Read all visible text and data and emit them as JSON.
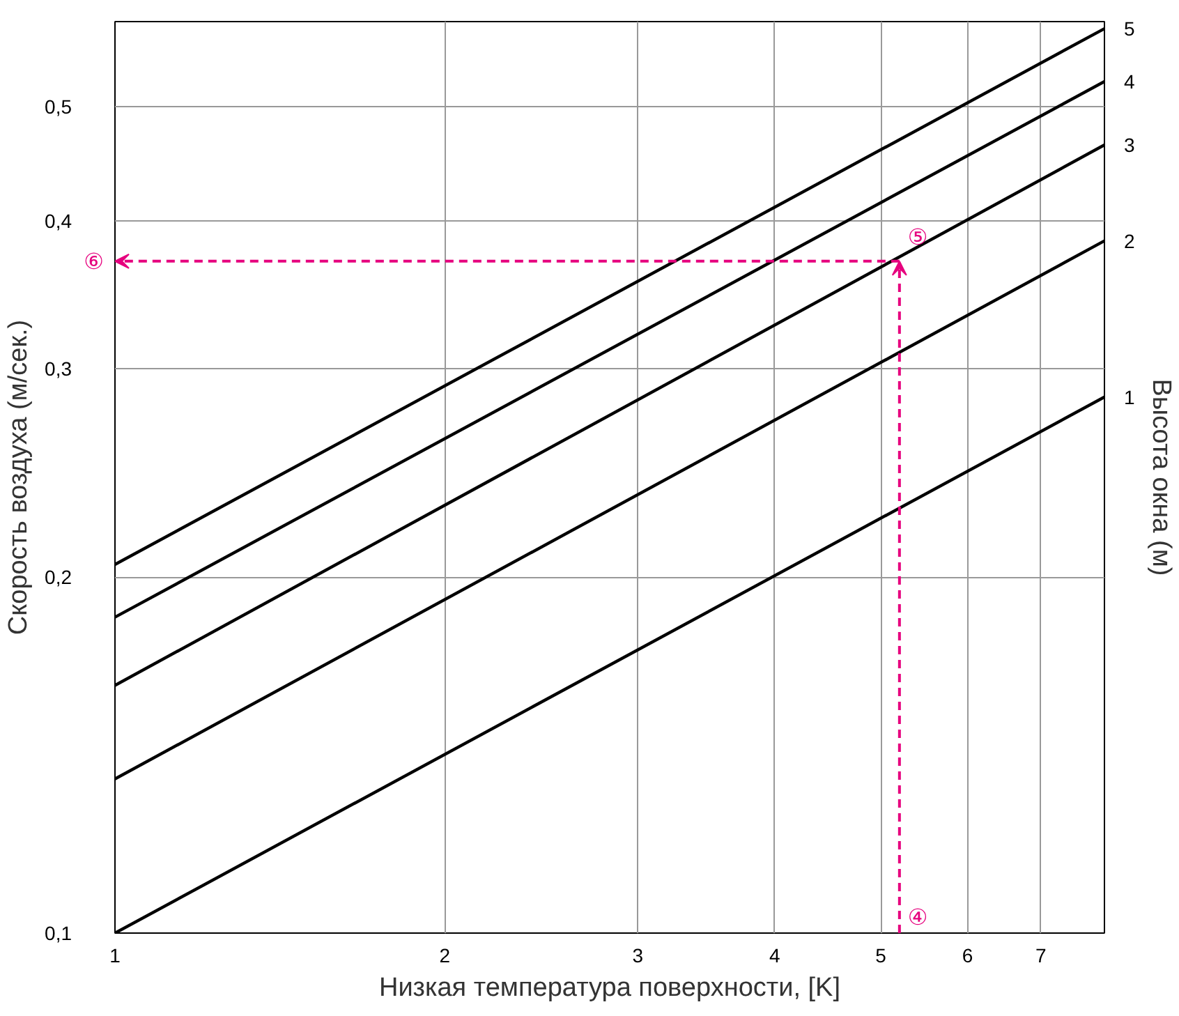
{
  "chart_data": {
    "type": "line",
    "xlabel": "Низкая температура поверхности, [K]",
    "ylabel": "Скорость воздуха (м/сек.)",
    "y2label": "Высота окна (м)",
    "log": "xy",
    "grid": true,
    "legend": false,
    "marker": "none",
    "xlim": [
      1,
      8
    ],
    "ylim": [
      0.1,
      0.59
    ],
    "xticks": [
      1,
      2,
      3,
      4,
      5,
      6,
      7
    ],
    "yticks": [
      {
        "value": 0.1,
        "label": "0,1"
      },
      {
        "value": 0.2,
        "label": "0,2"
      },
      {
        "value": 0.3,
        "label": "0,3"
      },
      {
        "value": 0.4,
        "label": "0,4"
      },
      {
        "value": 0.5,
        "label": "0,5"
      }
    ],
    "x": [
      1,
      8
    ],
    "series": [
      {
        "name": "1",
        "color": "#000000",
        "values": [
          0.1,
          0.284
        ]
      },
      {
        "name": "2",
        "color": "#000000",
        "values": [
          0.135,
          0.385
        ]
      },
      {
        "name": "3",
        "color": "#000000",
        "values": [
          0.162,
          0.464
        ]
      },
      {
        "name": "4",
        "color": "#000000",
        "values": [
          0.185,
          0.525
        ]
      },
      {
        "name": "5",
        "color": "#000000",
        "values": [
          0.205,
          0.582
        ]
      }
    ],
    "annotations": [
      "④",
      {
        "text": "⑤",
        "x": 5.2,
        "y": 0.37
      },
      "⑥"
    ]
  }
}
